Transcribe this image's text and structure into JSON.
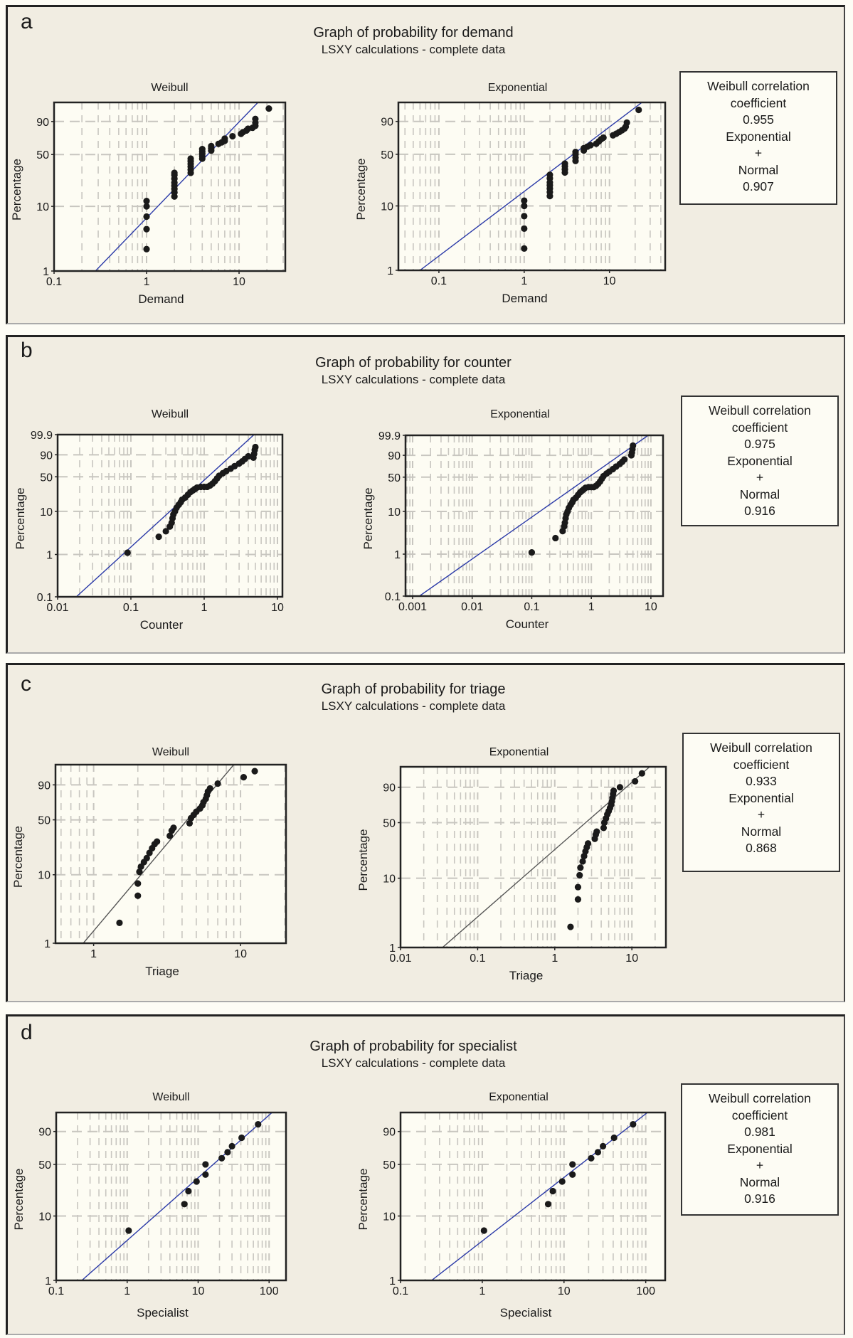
{
  "figure": {
    "panels": [
      {
        "letter": "a",
        "title": "Graph of probability for demand",
        "subtitle": "LSXY calculations - complete data",
        "correlation_box": {
          "line1": "Weibull correlation",
          "line2": "coefficient",
          "weibull_value": "0.955",
          "line4": "Exponential",
          "line5": "+",
          "line6": "Normal",
          "exp_normal_value": "0.907"
        }
      },
      {
        "letter": "b",
        "title": "Graph of probability for counter",
        "subtitle": "LSXY calculations - complete data",
        "correlation_box": {
          "line1": "Weibull correlation",
          "line2": "coefficient",
          "weibull_value": "0.975",
          "line4": "Exponential",
          "line5": "+",
          "line6": "Normal",
          "exp_normal_value": "0.916"
        }
      },
      {
        "letter": "c",
        "title": "Graph of probability for triage",
        "subtitle": "LSXY calculations - complete data",
        "correlation_box": {
          "line1": "Weibull correlation",
          "line2": "coefficient",
          "weibull_value": "0.933",
          "line4": "Exponential",
          "line5": "+",
          "line6": "Normal",
          "exp_normal_value": "0.868"
        }
      },
      {
        "letter": "d",
        "title": "Graph of probability for specialist",
        "subtitle": "LSXY calculations - complete data",
        "correlation_box": {
          "line1": "Weibull correlation",
          "line2": "coefficient",
          "weibull_value": "0.981",
          "line4": "Exponential",
          "line5": "+",
          "line6": "Normal",
          "exp_normal_value": "0.916"
        }
      }
    ]
  },
  "colors": {
    "panel_bg": "#f1ede2",
    "plot_bg": "#fdfcf3",
    "fit_line_blue": "#2b3aa8",
    "fit_line_gray": "#555555",
    "points": "#1a1a1a",
    "grid": "#c8c6c0"
  },
  "chart_data": [
    {
      "panel": "a",
      "type": "scatter",
      "title": "Weibull",
      "xlabel": "Demand",
      "ylabel": "Percentage",
      "xscale": "log",
      "yscale": "weibull-probability",
      "xlim": [
        0.1,
        31.6
      ],
      "ylim": [
        1,
        99
      ],
      "xticks": [
        0.1,
        1,
        10
      ],
      "xtick_labels": [
        "0.1",
        "1",
        "10"
      ],
      "yticks": [
        1,
        10,
        50,
        90
      ],
      "ytick_labels": [
        "1",
        "10",
        "50",
        "90"
      ],
      "grid": true,
      "fit_color": "blue",
      "fit_line": [
        [
          0.28,
          1
        ],
        [
          16,
          99
        ]
      ],
      "points": [
        [
          1,
          2.2
        ],
        [
          1,
          4.5
        ],
        [
          1,
          7
        ],
        [
          1,
          10
        ],
        [
          1,
          12
        ],
        [
          2,
          14
        ],
        [
          2,
          16
        ],
        [
          2,
          18
        ],
        [
          2,
          20
        ],
        [
          2,
          22
        ],
        [
          2,
          25
        ],
        [
          2,
          28
        ],
        [
          2,
          30
        ],
        [
          3,
          30
        ],
        [
          3,
          33
        ],
        [
          3,
          36
        ],
        [
          3,
          39
        ],
        [
          3,
          42
        ],
        [
          3,
          45
        ],
        [
          4,
          45
        ],
        [
          4,
          48
        ],
        [
          4,
          51
        ],
        [
          4,
          54
        ],
        [
          4,
          57
        ],
        [
          5,
          55
        ],
        [
          5,
          58
        ],
        [
          5,
          61
        ],
        [
          6,
          64
        ],
        [
          6.5,
          66
        ],
        [
          7,
          68
        ],
        [
          7,
          71
        ],
        [
          8.5,
          74
        ],
        [
          10.5,
          77
        ],
        [
          11,
          79
        ],
        [
          12,
          81
        ],
        [
          12.5,
          83
        ],
        [
          14,
          84
        ],
        [
          15,
          86
        ],
        [
          15,
          89
        ],
        [
          15,
          92
        ],
        [
          21,
          97.5
        ]
      ]
    },
    {
      "panel": "a",
      "type": "scatter",
      "title": "Exponential",
      "xlabel": "Demand",
      "ylabel": "Percentage",
      "xscale": "log",
      "yscale": "weibull-probability",
      "xlim": [
        0.0335,
        45
      ],
      "ylim": [
        1,
        99
      ],
      "xticks": [
        0.1,
        1,
        10
      ],
      "xtick_labels": [
        "0.1",
        "1",
        "10"
      ],
      "yticks": [
        1,
        10,
        50,
        90
      ],
      "ytick_labels": [
        "1",
        "10",
        "50",
        "90"
      ],
      "grid": true,
      "fit_color": "blue",
      "fit_line": [
        [
          0.06,
          1
        ],
        [
          24,
          99
        ]
      ],
      "points": [
        [
          1,
          2.2
        ],
        [
          1,
          4.5
        ],
        [
          1,
          7
        ],
        [
          1,
          10
        ],
        [
          1,
          12
        ],
        [
          2,
          14
        ],
        [
          2,
          16
        ],
        [
          2,
          18
        ],
        [
          2,
          20
        ],
        [
          2,
          22
        ],
        [
          2,
          25
        ],
        [
          2,
          28
        ],
        [
          3,
          30
        ],
        [
          3,
          33
        ],
        [
          3,
          36
        ],
        [
          3,
          39
        ],
        [
          4,
          42
        ],
        [
          4,
          46
        ],
        [
          4,
          50
        ],
        [
          4,
          53
        ],
        [
          5,
          55
        ],
        [
          5,
          58
        ],
        [
          5.5,
          60
        ],
        [
          6,
          62
        ],
        [
          7,
          64
        ],
        [
          7.5,
          67
        ],
        [
          8,
          70
        ],
        [
          8.5,
          72
        ],
        [
          11,
          75
        ],
        [
          12,
          77
        ],
        [
          13,
          79
        ],
        [
          14,
          81
        ],
        [
          15,
          83
        ],
        [
          15.5,
          85
        ],
        [
          16,
          89
        ],
        [
          22,
          97
        ]
      ]
    },
    {
      "panel": "b",
      "type": "scatter",
      "title": "Weibull",
      "xlabel": "Counter",
      "ylabel": "Percentage",
      "xscale": "log",
      "yscale": "weibull-probability",
      "xlim": [
        0.01,
        11.7
      ],
      "ylim": [
        0.1,
        99.9
      ],
      "xticks": [
        0.01,
        0.1,
        1,
        10
      ],
      "xtick_labels": [
        "0.01",
        "0.1",
        "1",
        "10"
      ],
      "yticks": [
        0.1,
        1,
        10,
        50,
        90,
        99.9
      ],
      "ytick_labels": [
        "0.1",
        "1",
        "10",
        "50",
        "90",
        "99.9"
      ],
      "grid": true,
      "fit_color": "blue",
      "fit_line": [
        [
          0.018,
          0.1
        ],
        [
          4.8,
          99.9
        ]
      ],
      "points": [
        [
          0.09,
          1.1
        ],
        [
          0.24,
          2.6
        ],
        [
          0.3,
          3.5
        ],
        [
          0.34,
          4.5
        ],
        [
          0.36,
          5.5
        ],
        [
          0.37,
          7
        ],
        [
          0.38,
          8.5
        ],
        [
          0.4,
          10
        ],
        [
          0.42,
          12
        ],
        [
          0.45,
          14
        ],
        [
          0.48,
          16
        ],
        [
          0.5,
          18
        ],
        [
          0.55,
          20
        ],
        [
          0.6,
          23
        ],
        [
          0.65,
          26
        ],
        [
          0.7,
          28
        ],
        [
          0.75,
          30
        ],
        [
          0.8,
          32
        ],
        [
          0.9,
          33
        ],
        [
          1.0,
          33
        ],
        [
          1.1,
          33
        ],
        [
          1.2,
          35
        ],
        [
          1.3,
          38
        ],
        [
          1.4,
          42
        ],
        [
          1.5,
          47
        ],
        [
          1.6,
          52
        ],
        [
          1.8,
          57
        ],
        [
          2.0,
          61
        ],
        [
          2.3,
          66
        ],
        [
          2.6,
          71
        ],
        [
          3.0,
          76
        ],
        [
          3.3,
          80
        ],
        [
          3.6,
          84
        ],
        [
          4.0,
          88
        ],
        [
          4.7,
          86
        ],
        [
          4.8,
          91
        ],
        [
          4.9,
          95
        ],
        [
          5.0,
          97
        ]
      ]
    },
    {
      "panel": "b",
      "type": "scatter",
      "title": "Exponential",
      "xlabel": "Counter",
      "ylabel": "Percentage",
      "xscale": "log",
      "yscale": "weibull-probability",
      "xlim": [
        0.00076,
        16
      ],
      "ylim": [
        0.1,
        99.9
      ],
      "xticks": [
        0.001,
        0.01,
        0.1,
        1,
        10
      ],
      "xtick_labels": [
        "0.001",
        "0.01",
        "0.1",
        "1",
        "10"
      ],
      "yticks": [
        0.1,
        1,
        10,
        50,
        90,
        99.9
      ],
      "ytick_labels": [
        "0.1",
        "1",
        "10",
        "50",
        "90",
        "99.9"
      ],
      "grid": true,
      "fit_color": "blue",
      "fit_line": [
        [
          0.0013,
          0.1
        ],
        [
          9,
          99.9
        ]
      ],
      "points": [
        [
          0.1,
          1.1
        ],
        [
          0.25,
          2.4
        ],
        [
          0.33,
          3.5
        ],
        [
          0.35,
          4.5
        ],
        [
          0.36,
          5.5
        ],
        [
          0.37,
          7
        ],
        [
          0.38,
          8.5
        ],
        [
          0.4,
          10
        ],
        [
          0.42,
          12
        ],
        [
          0.45,
          14
        ],
        [
          0.48,
          16
        ],
        [
          0.5,
          18
        ],
        [
          0.55,
          20
        ],
        [
          0.6,
          23
        ],
        [
          0.65,
          26
        ],
        [
          0.7,
          28
        ],
        [
          0.75,
          30
        ],
        [
          0.8,
          32
        ],
        [
          0.9,
          33
        ],
        [
          1.0,
          33
        ],
        [
          1.1,
          33
        ],
        [
          1.2,
          35
        ],
        [
          1.3,
          38
        ],
        [
          1.4,
          42
        ],
        [
          1.5,
          47
        ],
        [
          1.6,
          52
        ],
        [
          1.8,
          57
        ],
        [
          2.0,
          61
        ],
        [
          2.3,
          66
        ],
        [
          2.6,
          71
        ],
        [
          3.0,
          76
        ],
        [
          3.3,
          80
        ],
        [
          3.6,
          84
        ],
        [
          4.7,
          90
        ],
        [
          4.8,
          93
        ],
        [
          4.9,
          96
        ],
        [
          5.0,
          98
        ]
      ]
    },
    {
      "panel": "c",
      "type": "scatter",
      "title": "Weibull",
      "xlabel": "Triage",
      "ylabel": "Percentage",
      "xscale": "log",
      "yscale": "weibull-probability",
      "xlim": [
        0.55,
        20.4
      ],
      "ylim": [
        1,
        99
      ],
      "xticks": [
        1,
        10
      ],
      "xtick_labels": [
        "1",
        "10"
      ],
      "yticks": [
        1,
        10,
        50,
        90
      ],
      "ytick_labels": [
        "1",
        "10",
        "50",
        "90"
      ],
      "grid": true,
      "fit_color": "gray",
      "fit_line": [
        [
          0.85,
          1
        ],
        [
          9,
          99
        ]
      ],
      "points": [
        [
          1.5,
          2
        ],
        [
          2.0,
          5
        ],
        [
          2.0,
          7.5
        ],
        [
          2.05,
          11
        ],
        [
          2.1,
          13
        ],
        [
          2.2,
          15
        ],
        [
          2.3,
          17
        ],
        [
          2.4,
          20
        ],
        [
          2.5,
          23
        ],
        [
          2.6,
          26
        ],
        [
          2.7,
          28
        ],
        [
          3.3,
          33
        ],
        [
          3.4,
          38
        ],
        [
          3.5,
          41
        ],
        [
          4.5,
          46
        ],
        [
          4.6,
          52
        ],
        [
          4.8,
          56
        ],
        [
          5.0,
          60
        ],
        [
          5.3,
          64
        ],
        [
          5.5,
          68
        ],
        [
          5.6,
          72
        ],
        [
          5.8,
          76
        ],
        [
          5.9,
          80
        ],
        [
          6.0,
          84
        ],
        [
          6.2,
          87
        ],
        [
          7.0,
          91
        ],
        [
          10.5,
          95
        ],
        [
          12.5,
          97.5
        ]
      ]
    },
    {
      "panel": "c",
      "type": "scatter",
      "title": "Exponential",
      "xlabel": "Triage",
      "ylabel": "Percentage",
      "xscale": "log",
      "yscale": "weibull-probability",
      "xlim": [
        0.01,
        27.6
      ],
      "ylim": [
        1,
        99
      ],
      "xticks": [
        0.01,
        0.1,
        1,
        10
      ],
      "xtick_labels": [
        "0.01",
        "0.1",
        "1",
        "10"
      ],
      "yticks": [
        1,
        10,
        50,
        90
      ],
      "ytick_labels": [
        "1",
        "10",
        "50",
        "90"
      ],
      "grid": true,
      "fit_color": "gray",
      "fit_line": [
        [
          0.035,
          1
        ],
        [
          17,
          99
        ]
      ],
      "points": [
        [
          1.6,
          2
        ],
        [
          2.0,
          5
        ],
        [
          2.0,
          7.5
        ],
        [
          2.1,
          11
        ],
        [
          2.15,
          14
        ],
        [
          2.3,
          17
        ],
        [
          2.4,
          20
        ],
        [
          2.5,
          23
        ],
        [
          2.6,
          26
        ],
        [
          2.7,
          29
        ],
        [
          3.3,
          33
        ],
        [
          3.4,
          37
        ],
        [
          3.5,
          40
        ],
        [
          4.3,
          44
        ],
        [
          4.4,
          50
        ],
        [
          4.6,
          55
        ],
        [
          4.8,
          60
        ],
        [
          5.0,
          64
        ],
        [
          5.2,
          68
        ],
        [
          5.4,
          72
        ],
        [
          5.5,
          76
        ],
        [
          5.6,
          80
        ],
        [
          5.7,
          84
        ],
        [
          5.8,
          87
        ],
        [
          7.0,
          90
        ],
        [
          11,
          94
        ],
        [
          13.5,
          97.5
        ]
      ]
    },
    {
      "panel": "d",
      "type": "scatter",
      "title": "Weibull",
      "xlabel": "Specialist",
      "ylabel": "Percentage",
      "xscale": "log",
      "yscale": "weibull-probability",
      "xlim": [
        0.1,
        173
      ],
      "ylim": [
        1,
        99
      ],
      "xticks": [
        0.1,
        1,
        10,
        100
      ],
      "xtick_labels": [
        "0.1",
        "1",
        "10",
        "100"
      ],
      "yticks": [
        1,
        10,
        50,
        90
      ],
      "ytick_labels": [
        "1",
        "10",
        "50",
        "90"
      ],
      "grid": true,
      "fit_color": "blue",
      "fit_line": [
        [
          0.23,
          1
        ],
        [
          110,
          99
        ]
      ],
      "points": [
        [
          1.05,
          6
        ],
        [
          6.4,
          15
        ],
        [
          7.3,
          23
        ],
        [
          9.5,
          31
        ],
        [
          12.7,
          38
        ],
        [
          12.7,
          50
        ],
        [
          21.5,
          58
        ],
        [
          26,
          66
        ],
        [
          30,
          74
        ],
        [
          41,
          84
        ],
        [
          70,
          95
        ]
      ]
    },
    {
      "panel": "d",
      "type": "scatter",
      "title": "Exponential",
      "xlabel": "Specialist",
      "ylabel": "Percentage",
      "xscale": "log",
      "yscale": "weibull-probability",
      "xlim": [
        0.1,
        173
      ],
      "ylim": [
        1,
        99
      ],
      "xticks": [
        0.1,
        1,
        10,
        100
      ],
      "xtick_labels": [
        "0.1",
        "1",
        "10",
        "100"
      ],
      "yticks": [
        1,
        10,
        50,
        90
      ],
      "ytick_labels": [
        "1",
        "10",
        "50",
        "90"
      ],
      "grid": true,
      "fit_color": "blue",
      "fit_line": [
        [
          0.24,
          1
        ],
        [
          105,
          99
        ]
      ],
      "points": [
        [
          1.05,
          6
        ],
        [
          6.4,
          15
        ],
        [
          7.3,
          23
        ],
        [
          9.5,
          31
        ],
        [
          12.7,
          38
        ],
        [
          12.7,
          50
        ],
        [
          21.5,
          58
        ],
        [
          26,
          66
        ],
        [
          30,
          74
        ],
        [
          41,
          84
        ],
        [
          70,
          95
        ]
      ]
    }
  ]
}
